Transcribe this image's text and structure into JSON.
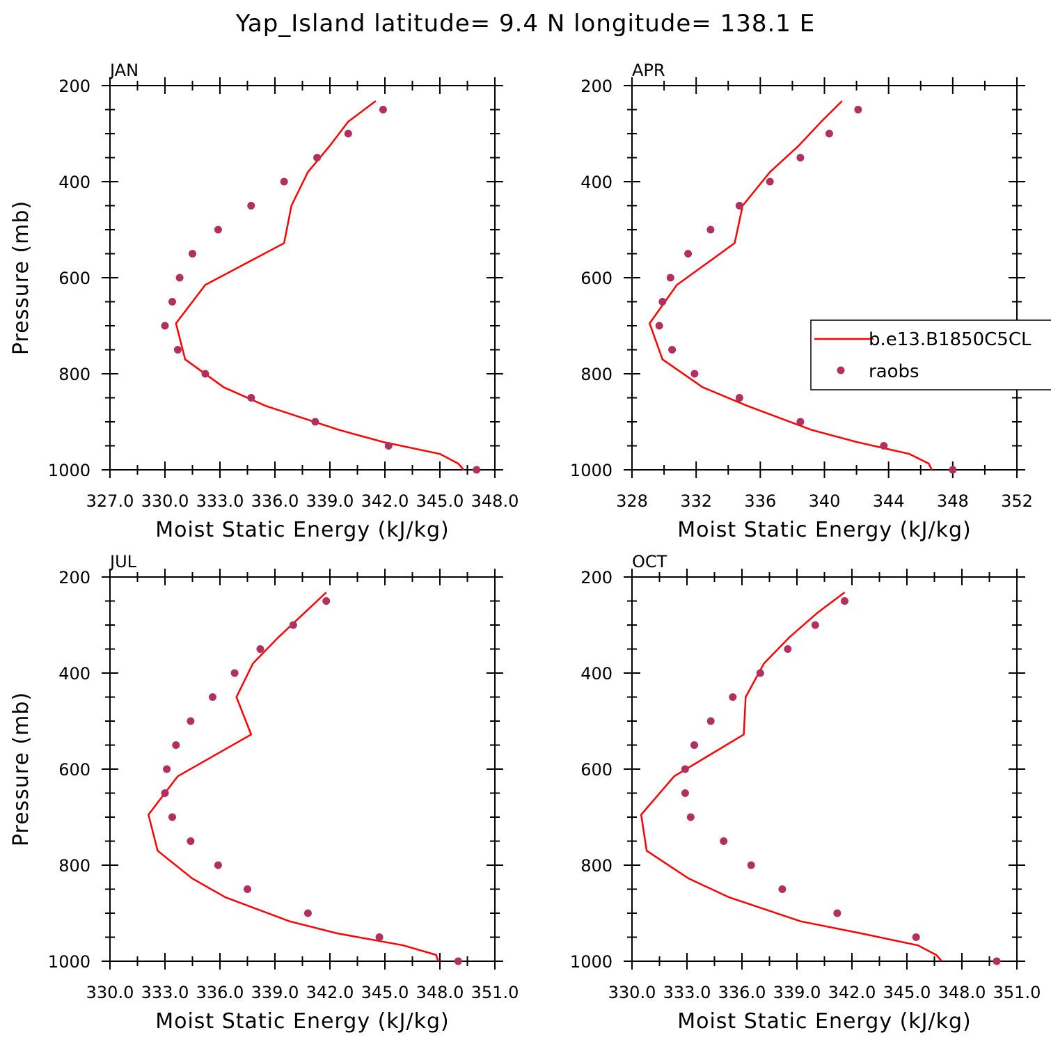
{
  "figure": {
    "title": "Yap_Island  latitude= 9.4 N longitude= 138.1 E",
    "colors": {
      "model": "#ff0000",
      "obs": "#b03060",
      "frame": "#000000"
    }
  },
  "legend": {
    "items": [
      {
        "label": "b.e13.B1850C5CL",
        "kind": "line"
      },
      {
        "label": "raobs",
        "kind": "marker"
      }
    ]
  },
  "chart_data": [
    {
      "type": "line",
      "title": "JAN",
      "xlabel": "Moist Static Energy (kJ/kg)",
      "ylabel": "Pressure (mb)",
      "xlim": [
        327.0,
        348.0
      ],
      "ylim": [
        1000,
        200
      ],
      "xticks": [
        327.0,
        330.0,
        333.0,
        336.0,
        339.0,
        342.0,
        345.0,
        348.0
      ],
      "xtick_labels": [
        "327.0",
        "330.0",
        "333.0",
        "336.0",
        "339.0",
        "342.0",
        "345.0",
        "348.0"
      ],
      "yticks": [
        200,
        400,
        600,
        800,
        1000
      ],
      "ytick_labels": [
        "200",
        "400",
        "600",
        "800",
        "1000"
      ],
      "series": [
        {
          "name": "b.e13.B1850C5CL",
          "style": "line",
          "p": [
            232,
            275,
            325,
            380,
            450,
            528,
            615,
            695,
            770,
            828,
            867,
            917,
            942,
            967,
            987,
            1000
          ],
          "x": [
            341.5,
            340.0,
            339.0,
            337.8,
            336.9,
            336.5,
            332.2,
            330.6,
            331.1,
            333.2,
            335.5,
            339.5,
            341.9,
            345.0,
            346.0,
            346.3
          ]
        },
        {
          "name": "raobs",
          "style": "marker",
          "p": [
            250,
            300,
            350,
            400,
            450,
            500,
            550,
            600,
            650,
            700,
            750,
            800,
            850,
            900,
            950,
            1000
          ],
          "x": [
            341.9,
            340.0,
            338.3,
            336.5,
            334.7,
            332.9,
            331.5,
            330.8,
            330.4,
            330.0,
            330.7,
            332.2,
            334.7,
            338.2,
            342.2,
            347.0
          ]
        }
      ]
    },
    {
      "type": "line",
      "title": "APR",
      "xlabel": "Moist Static Energy (kJ/kg)",
      "ylabel": "",
      "xlim": [
        328,
        352
      ],
      "ylim": [
        1000,
        200
      ],
      "xticks": [
        328,
        332,
        336,
        340,
        344,
        348,
        352
      ],
      "xtick_labels": [
        "328",
        "332",
        "336",
        "340",
        "344",
        "348",
        "352"
      ],
      "yticks": [
        200,
        400,
        600,
        800,
        1000
      ],
      "ytick_labels": [
        "200",
        "400",
        "600",
        "800",
        "1000"
      ],
      "series": [
        {
          "name": "b.e13.B1850C5CL",
          "style": "line",
          "p": [
            232,
            275,
            325,
            380,
            450,
            528,
            615,
            695,
            770,
            828,
            867,
            917,
            942,
            967,
            987,
            1000
          ],
          "x": [
            341.1,
            339.8,
            338.4,
            336.6,
            334.9,
            334.4,
            330.8,
            329.1,
            329.9,
            332.4,
            335.2,
            339.2,
            342.0,
            345.3,
            346.5,
            346.7
          ]
        },
        {
          "name": "raobs",
          "style": "marker",
          "p": [
            250,
            300,
            350,
            400,
            450,
            500,
            550,
            600,
            650,
            700,
            750,
            800,
            850,
            900,
            950,
            1000
          ],
          "x": [
            342.1,
            340.3,
            338.5,
            336.6,
            334.7,
            332.9,
            331.5,
            330.4,
            329.9,
            329.7,
            330.5,
            331.9,
            334.7,
            338.5,
            343.7,
            348.0
          ]
        }
      ]
    },
    {
      "type": "line",
      "title": "JUL",
      "xlabel": "Moist Static Energy (kJ/kg)",
      "ylabel": "Pressure (mb)",
      "xlim": [
        330.0,
        351.0
      ],
      "ylim": [
        1000,
        200
      ],
      "xticks": [
        330.0,
        333.0,
        336.0,
        339.0,
        342.0,
        345.0,
        348.0,
        351.0
      ],
      "xtick_labels": [
        "330.0",
        "333.0",
        "336.0",
        "339.0",
        "342.0",
        "345.0",
        "348.0",
        "351.0"
      ],
      "yticks": [
        200,
        400,
        600,
        800,
        1000
      ],
      "ytick_labels": [
        "200",
        "400",
        "600",
        "800",
        "1000"
      ],
      "series": [
        {
          "name": "b.e13.B1850C5CL",
          "style": "line",
          "p": [
            232,
            275,
            325,
            380,
            450,
            528,
            615,
            695,
            770,
            828,
            867,
            917,
            942,
            967,
            987,
            1000
          ],
          "x": [
            341.8,
            340.6,
            339.2,
            337.8,
            336.9,
            337.7,
            333.7,
            332.1,
            332.6,
            334.5,
            336.3,
            339.8,
            342.4,
            346.0,
            347.8,
            347.9
          ]
        },
        {
          "name": "raobs",
          "style": "marker",
          "p": [
            250,
            300,
            350,
            400,
            450,
            500,
            550,
            600,
            650,
            700,
            750,
            800,
            850,
            900,
            950,
            1000
          ],
          "x": [
            341.8,
            340.0,
            338.2,
            336.8,
            335.6,
            334.4,
            333.6,
            333.1,
            333.0,
            333.4,
            334.4,
            335.9,
            337.5,
            340.8,
            344.7,
            349.0
          ]
        }
      ]
    },
    {
      "type": "line",
      "title": "OCT",
      "xlabel": "Moist Static Energy (kJ/kg)",
      "ylabel": "",
      "xlim": [
        330.0,
        351.0
      ],
      "ylim": [
        1000,
        200
      ],
      "xticks": [
        330.0,
        333.0,
        336.0,
        339.0,
        342.0,
        345.0,
        348.0,
        351.0
      ],
      "xtick_labels": [
        "330.0",
        "333.0",
        "336.0",
        "339.0",
        "342.0",
        "345.0",
        "348.0",
        "351.0"
      ],
      "yticks": [
        200,
        400,
        600,
        800,
        1000
      ],
      "ytick_labels": [
        "200",
        "400",
        "600",
        "800",
        "1000"
      ],
      "series": [
        {
          "name": "b.e13.B1850C5CL",
          "style": "line",
          "p": [
            232,
            275,
            325,
            380,
            450,
            528,
            615,
            695,
            770,
            828,
            867,
            917,
            942,
            967,
            987,
            1000
          ],
          "x": [
            341.6,
            340.1,
            338.6,
            337.2,
            336.2,
            336.1,
            332.3,
            330.5,
            330.8,
            333.1,
            335.3,
            339.2,
            342.5,
            345.6,
            346.6,
            346.9
          ]
        },
        {
          "name": "raobs",
          "style": "marker",
          "p": [
            250,
            300,
            350,
            400,
            450,
            500,
            550,
            600,
            650,
            700,
            750,
            800,
            850,
            900,
            950,
            1000
          ],
          "x": [
            341.6,
            340.0,
            338.5,
            337.0,
            335.5,
            334.3,
            333.4,
            332.9,
            332.9,
            333.2,
            335.0,
            336.5,
            338.2,
            341.2,
            345.5,
            349.9
          ]
        }
      ]
    }
  ]
}
